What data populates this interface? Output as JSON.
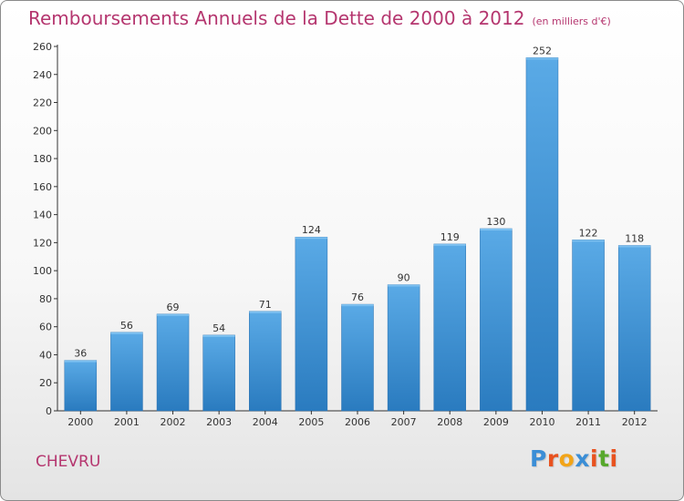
{
  "chart_data": {
    "type": "bar",
    "title": "Remboursements Annuels de la Dette de 2000 à 2012",
    "unit_note": "(en milliers d'€)",
    "categories": [
      "2000",
      "2001",
      "2002",
      "2003",
      "2004",
      "2005",
      "2006",
      "2007",
      "2008",
      "2009",
      "2010",
      "2011",
      "2012"
    ],
    "values": [
      36,
      56,
      69,
      54,
      71,
      124,
      76,
      90,
      119,
      130,
      252,
      122,
      118
    ],
    "data_labels": [
      "36",
      "56",
      "69",
      "54",
      "71",
      "124",
      "76",
      "90",
      "119",
      "130",
      "252",
      "122",
      "118"
    ],
    "yticks": [
      "0",
      "20",
      "40",
      "60",
      "80",
      "100",
      "120",
      "140",
      "160",
      "180",
      "200",
      "220",
      "240",
      "260"
    ],
    "ylim": [
      0,
      260
    ],
    "ytick_step": 20,
    "grid": false,
    "bar_color_top": "#5aaae6",
    "bar_color_bottom": "#2a7bbf"
  },
  "commune": "CHEVRU",
  "logo": {
    "letters": [
      "P",
      "r",
      "o",
      "x",
      "i",
      "t",
      "i"
    ],
    "colors": [
      "#3b8ed6",
      "#e8521f",
      "#f2a418",
      "#3b8ed6",
      "#e8521f",
      "#57a82c",
      "#e8521f"
    ]
  },
  "colors": {
    "title": "#b5366f",
    "axis": "#333333"
  }
}
